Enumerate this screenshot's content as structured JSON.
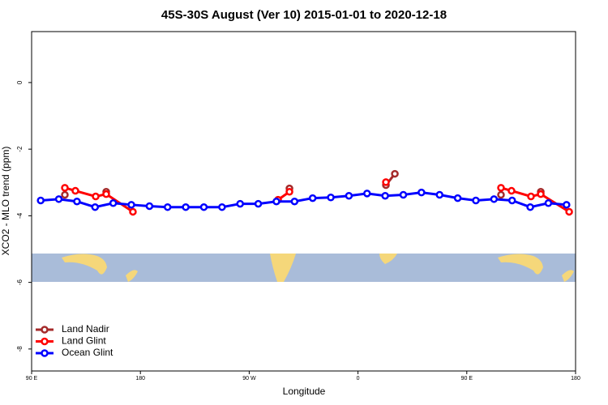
{
  "chart_data": {
    "type": "line",
    "title": "45S-30S August (Ver 10)   2015-01-01 to 2020-12-18",
    "x_label": "Longitude",
    "y_label": "XCO2 - MLO trend (ppm)",
    "xlim": [
      90,
      540
    ],
    "xticks": [
      {
        "value": 90,
        "label": "90 E"
      },
      {
        "value": 180,
        "label": "180"
      },
      {
        "value": 270,
        "label": "90 W"
      },
      {
        "value": 360,
        "label": "0"
      },
      {
        "value": 450,
        "label": "90 E"
      },
      {
        "value": 540,
        "label": "180"
      }
    ],
    "ylim": [
      -8.66,
      1.53
    ],
    "yticks": [
      0,
      -2,
      -4,
      -6,
      -8
    ],
    "legend": "bottom-left",
    "series": [
      {
        "name": "Land Nadir",
        "color": "#a52a2a",
        "x": [
          117.5,
          null,
          151.7,
          null,
          303.3,
          null,
          383.1,
          390.5,
          null,
          478.3,
          null,
          511.2
        ],
        "values": [
          -3.37,
          null,
          -3.28,
          null,
          -3.18,
          null,
          -3.08,
          -2.74,
          null,
          -3.37,
          null,
          -3.28
        ]
      },
      {
        "name": "Land Glint",
        "color": "#ff0000",
        "x": [
          117.5,
          126.2,
          143,
          151.7,
          173.8,
          null,
          293.9,
          303.3,
          null,
          383.1,
          null,
          478.3,
          487,
          503.1,
          511.2,
          534.7
        ],
        "values": [
          -3.16,
          -3.25,
          -3.42,
          -3.35,
          -3.88,
          null,
          -3.52,
          -3.28,
          null,
          -2.99,
          null,
          -3.16,
          -3.25,
          -3.42,
          -3.35,
          -3.88
        ]
      },
      {
        "name": "Ocean Glint",
        "color": "#0000ff",
        "x": [
          97.5,
          112.5,
          127.5,
          142.5,
          157.5,
          172.5,
          187.5,
          202.5,
          217.5,
          232.5,
          247.5,
          262.5,
          277.5,
          292.5,
          307.5,
          322.5,
          337.5,
          352.5,
          367.5,
          382.5,
          397.5,
          412.5,
          427.5,
          442.5,
          457.5,
          472.5,
          487.5,
          502.5,
          517.5,
          532.5
        ],
        "values": [
          -3.54,
          -3.5,
          -3.57,
          -3.74,
          -3.62,
          -3.67,
          -3.71,
          -3.74,
          -3.74,
          -3.74,
          -3.74,
          -3.64,
          -3.64,
          -3.57,
          -3.57,
          -3.47,
          -3.45,
          -3.4,
          -3.33,
          -3.4,
          -3.37,
          -3.3,
          -3.37,
          -3.47,
          -3.54,
          -3.5,
          -3.54,
          -3.74,
          -3.62,
          -3.67
        ]
      }
    ]
  }
}
